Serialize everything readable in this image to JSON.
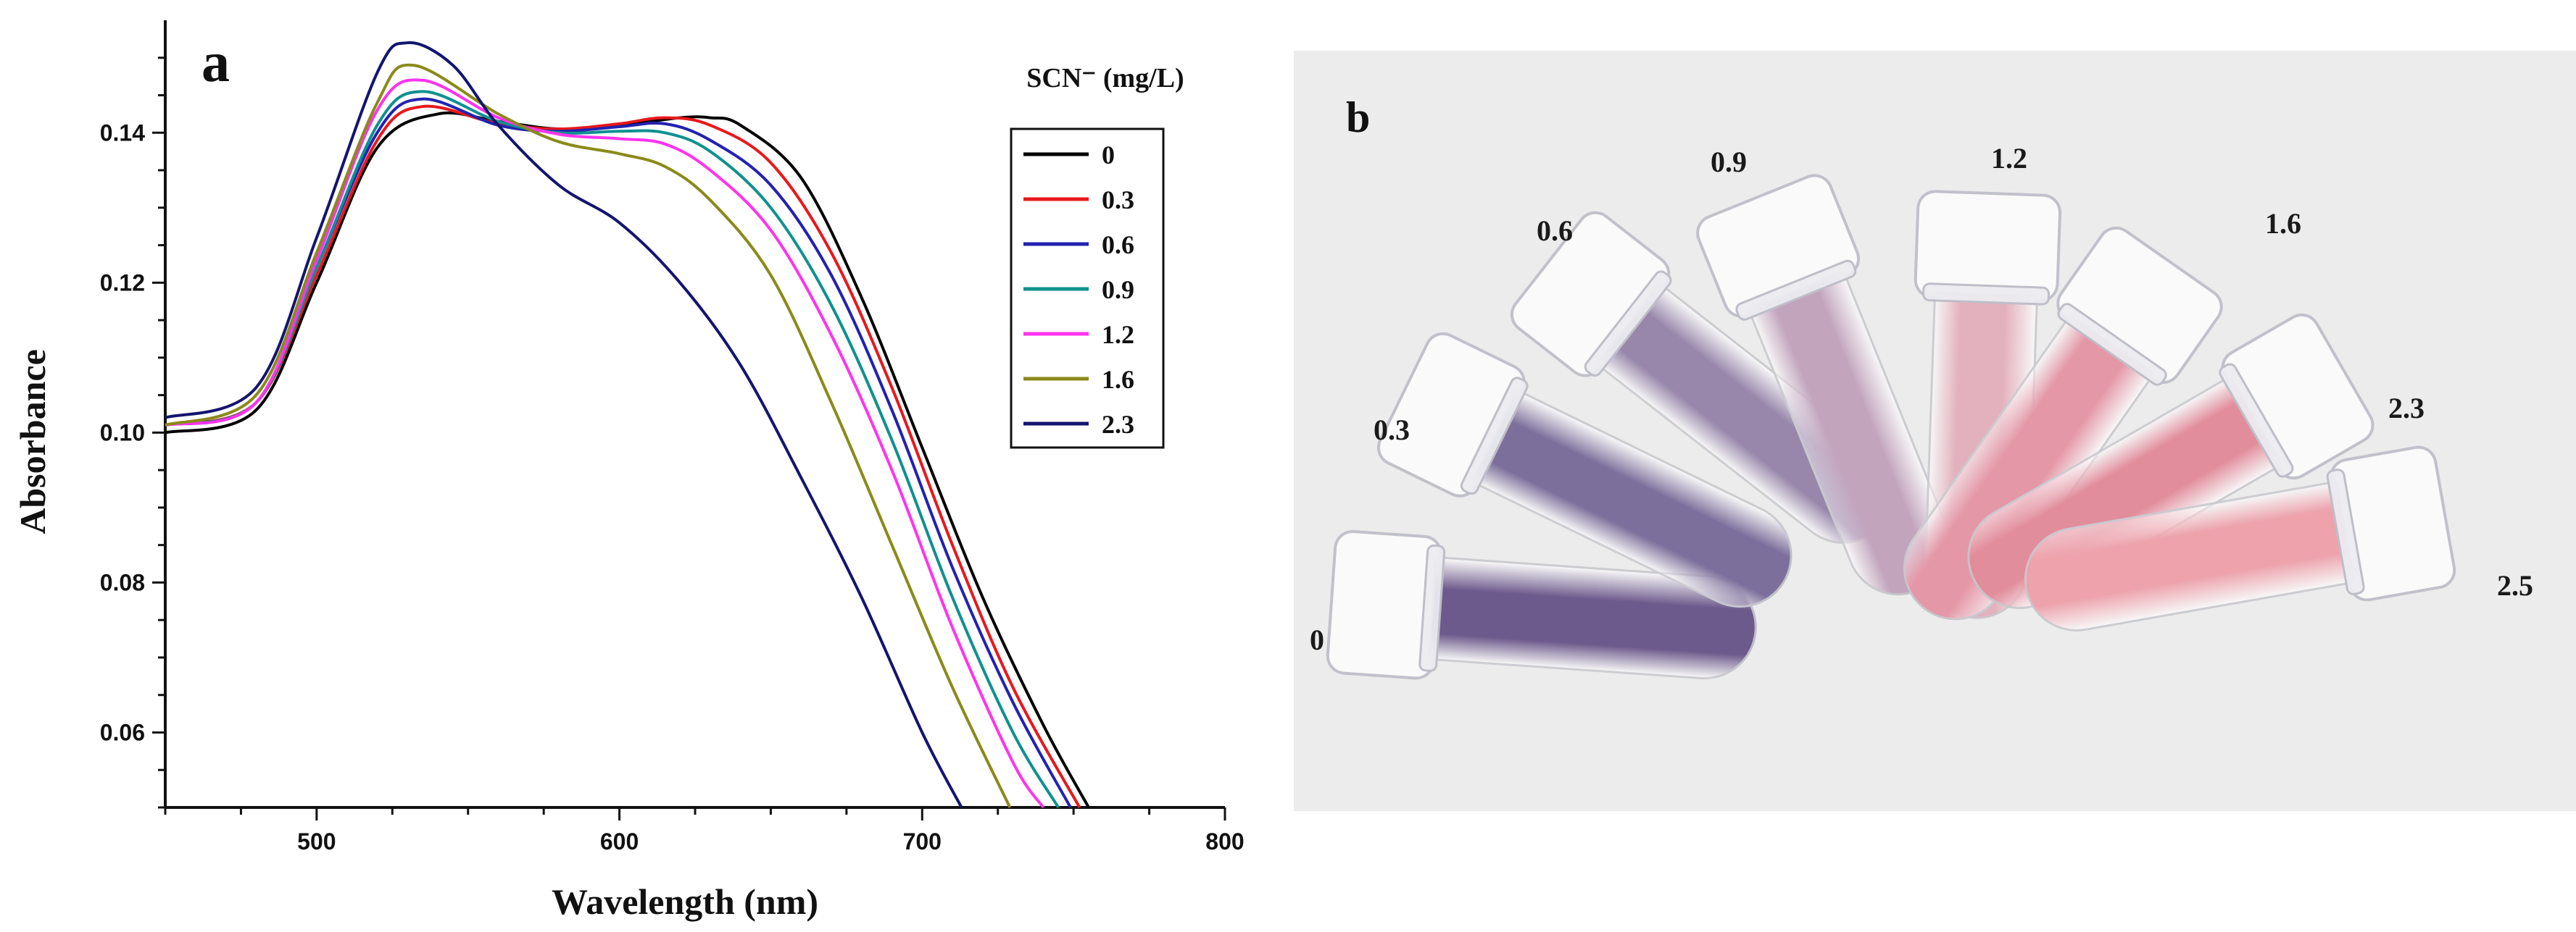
{
  "panel_a": {
    "letter": "a"
  },
  "panel_b": {
    "letter": "b",
    "tubes": [
      {
        "label": "0",
        "color": "#6d5a8c"
      },
      {
        "label": "0.3",
        "color": "#7d6f9b"
      },
      {
        "label": "0.6",
        "color": "#9887ab"
      },
      {
        "label": "0.9",
        "color": "#c2a4bd"
      },
      {
        "label": "1.2",
        "color": "#e3b1bd"
      },
      {
        "label": "1.6",
        "color": "#e497a7"
      },
      {
        "label": "2.3",
        "color": "#e28d9c"
      },
      {
        "label": "2.5",
        "color": "#eda2ac"
      }
    ]
  },
  "chart_data": {
    "type": "line",
    "xlabel": "Wavelength (nm)",
    "ylabel": "Absorbance",
    "xlim": [
      450,
      800
    ],
    "ylim": [
      0.05,
      0.155
    ],
    "xticks": [
      "500",
      "600",
      "700",
      "800"
    ],
    "yticks": [
      "0.06",
      "0.08",
      "0.10",
      "0.12",
      "0.14"
    ],
    "legend_title": "SCN⁻ (mg/L)",
    "legend_placement": "right",
    "grid": false,
    "series": [
      {
        "name": "0",
        "color": "#000000",
        "x": [
          450,
          480,
          500,
          520,
          540,
          560,
          580,
          600,
          620,
          630,
          640,
          660,
          680,
          700,
          720,
          740,
          755
        ],
        "y": [
          0.1,
          0.103,
          0.12,
          0.138,
          0.1425,
          0.1415,
          0.1405,
          0.141,
          0.142,
          0.142,
          0.141,
          0.134,
          0.118,
          0.098,
          0.078,
          0.061,
          0.05
        ]
      },
      {
        "name": "0.3",
        "color": "#e8181c",
        "x": [
          450,
          480,
          500,
          520,
          535,
          560,
          580,
          600,
          615,
          630,
          650,
          670,
          690,
          710,
          730,
          752
        ],
        "y": [
          0.101,
          0.104,
          0.121,
          0.139,
          0.1435,
          0.1412,
          0.1405,
          0.1412,
          0.142,
          0.141,
          0.136,
          0.124,
          0.106,
          0.085,
          0.066,
          0.05
        ]
      },
      {
        "name": "0.6",
        "color": "#2222b0",
        "x": [
          450,
          480,
          500,
          520,
          535,
          560,
          580,
          600,
          615,
          630,
          650,
          670,
          690,
          710,
          730,
          749
        ],
        "y": [
          0.101,
          0.104,
          0.122,
          0.14,
          0.1445,
          0.141,
          0.1402,
          0.1408,
          0.1412,
          0.139,
          0.133,
          0.121,
          0.103,
          0.082,
          0.064,
          0.05
        ]
      },
      {
        "name": "0.9",
        "color": "#0f9090",
        "x": [
          450,
          480,
          500,
          520,
          535,
          560,
          580,
          600,
          615,
          630,
          650,
          670,
          690,
          710,
          730,
          745
        ],
        "y": [
          0.101,
          0.104,
          0.122,
          0.141,
          0.1455,
          0.1415,
          0.14,
          0.1402,
          0.14,
          0.1375,
          0.13,
          0.117,
          0.099,
          0.078,
          0.06,
          0.05
        ]
      },
      {
        "name": "1.2",
        "color": "#ff33ee",
        "x": [
          450,
          480,
          500,
          520,
          535,
          560,
          580,
          600,
          615,
          630,
          650,
          670,
          690,
          710,
          730,
          740
        ],
        "y": [
          0.101,
          0.104,
          0.123,
          0.143,
          0.147,
          0.142,
          0.1398,
          0.1392,
          0.1385,
          0.135,
          0.127,
          0.113,
          0.095,
          0.074,
          0.056,
          0.05
        ]
      },
      {
        "name": "1.6",
        "color": "#8a8a1a",
        "x": [
          450,
          480,
          500,
          520,
          532,
          560,
          580,
          600,
          615,
          630,
          650,
          670,
          690,
          710,
          729
        ],
        "y": [
          0.101,
          0.105,
          0.124,
          0.144,
          0.149,
          0.1425,
          0.1388,
          0.1372,
          0.1355,
          0.131,
          0.121,
          0.104,
          0.085,
          0.066,
          0.05
        ]
      },
      {
        "name": "2.3",
        "color": "#141470",
        "x": [
          450,
          480,
          500,
          520,
          530,
          545,
          560,
          580,
          600,
          620,
          640,
          660,
          680,
          700,
          713
        ],
        "y": [
          0.102,
          0.106,
          0.126,
          0.148,
          0.152,
          0.149,
          0.141,
          0.133,
          0.128,
          0.12,
          0.109,
          0.094,
          0.078,
          0.06,
          0.05
        ]
      }
    ]
  }
}
